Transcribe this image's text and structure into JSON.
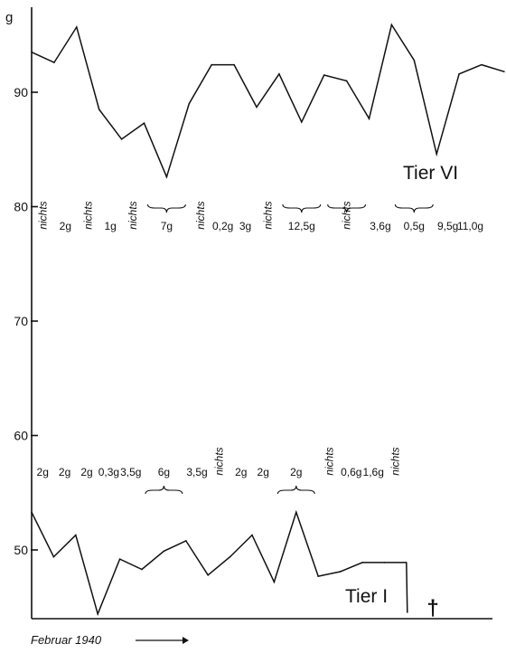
{
  "chart_data": {
    "type": "line",
    "xlabel": "Februar 1940",
    "ylabel": "g",
    "ylim": [
      43,
      100
    ],
    "yticks": [
      50,
      60,
      70,
      80,
      90
    ],
    "grid": false,
    "series": [
      {
        "name": "Tier VI",
        "values": [
          93.5,
          92.6,
          95.7,
          88.5,
          85.9,
          87.3,
          82.6,
          89.0,
          92.4,
          92.4,
          88.7,
          91.6,
          87.4,
          91.5,
          91.0,
          87.7,
          95.9,
          92.8,
          84.6,
          91.6,
          92.4,
          91.8
        ],
        "feed_labels": [
          {
            "text": "nichts",
            "after": 0,
            "vertical": true
          },
          {
            "text": "2g",
            "after": 1
          },
          {
            "text": "nichts",
            "after": 2,
            "vertical": true
          },
          {
            "text": "1g",
            "after": 3
          },
          {
            "text": "nichts",
            "after": 4,
            "vertical": true
          },
          {
            "text": "7g",
            "span": [
              5,
              7
            ]
          },
          {
            "text": "nichts",
            "after": 7,
            "vertical": true
          },
          {
            "text": "0,2g",
            "after": 8
          },
          {
            "text": "3g",
            "after": 9
          },
          {
            "text": "nichts",
            "after": 10,
            "vertical": true
          },
          {
            "text": "12,5g",
            "span": [
              11,
              13
            ]
          },
          {
            "text": "nichts",
            "span": [
              13,
              15
            ],
            "vertical": true
          },
          {
            "text": "3,6g",
            "after": 15
          },
          {
            "text": "0,5g",
            "span": [
              16,
              18
            ]
          },
          {
            "text": "9,5g",
            "after": 18
          },
          {
            "text": "11,0g",
            "after": 19
          }
        ]
      },
      {
        "name": "Tier I",
        "values": [
          53.3,
          49.4,
          51.3,
          44.4,
          49.2,
          48.3,
          49.9,
          50.8,
          47.8,
          49.4,
          51.3,
          47.2,
          53.3,
          47.7,
          48.1,
          48.9,
          48.9,
          48.9
        ],
        "end_marker": "†",
        "feed_labels": [
          {
            "text": "2g",
            "after": 0
          },
          {
            "text": "2g",
            "after": 1
          },
          {
            "text": "2g",
            "after": 2
          },
          {
            "text": "0,3g",
            "after": 3
          },
          {
            "text": "3,5g",
            "after": 4
          },
          {
            "text": "6g",
            "span": [
              5,
              7
            ]
          },
          {
            "text": "3,5g",
            "after": 7
          },
          {
            "text": "nichts",
            "after": 8,
            "vertical": true
          },
          {
            "text": "2g",
            "after": 9
          },
          {
            "text": "2g",
            "after": 10
          },
          {
            "text": "2g",
            "span": [
              11,
              13
            ]
          },
          {
            "text": "nichts",
            "after": 13,
            "vertical": true
          },
          {
            "text": "0,6g",
            "after": 14
          },
          {
            "text": "1,6g",
            "after": 15
          },
          {
            "text": "nichts",
            "after": 16,
            "vertical": true
          }
        ]
      }
    ]
  }
}
